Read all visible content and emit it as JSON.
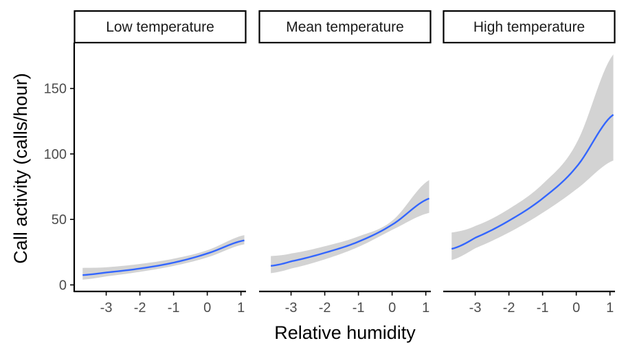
{
  "chart_data": {
    "type": "line",
    "xlabel": "Relative humidity",
    "ylabel": "Call activity (calls/hour)",
    "xlim": [
      -3.95,
      1.15
    ],
    "ylim": [
      -5,
      185
    ],
    "x_ticks": [
      -3,
      -2,
      -1,
      0,
      1
    ],
    "x_tick_labels": [
      "-3",
      "-2",
      "-1",
      "0",
      "1"
    ],
    "y_ticks": [
      0,
      50,
      100,
      150
    ],
    "y_tick_labels": [
      "0",
      "50",
      "100",
      "150"
    ],
    "grid": false,
    "legend": "none",
    "colors": {
      "line": "#3366FF",
      "ribbon": "#D3D3D3",
      "axis": "#000000",
      "strip_border": "#000000"
    },
    "panels": [
      {
        "strip": "Low temperature",
        "x": [
          -3.7,
          -3,
          -2,
          -1,
          0,
          1.1
        ],
        "y": [
          7.5,
          9.5,
          12.5,
          17,
          24,
          34
        ],
        "ymin": [
          4,
          6.5,
          10,
          14.5,
          21,
          31
        ],
        "ymax": [
          13,
          13.5,
          16,
          20,
          26.5,
          38
        ]
      },
      {
        "strip": "Mean temperature",
        "x": [
          -3.6,
          -3,
          -2,
          -1,
          0,
          1.1
        ],
        "y": [
          14.5,
          18,
          24.5,
          33,
          46,
          66
        ],
        "ymin": [
          9,
          12.5,
          19.5,
          29,
          42,
          55
        ],
        "ymax": [
          22,
          24,
          29.5,
          37,
          49,
          80
        ]
      },
      {
        "strip": "High temperature",
        "x": [
          -3.7,
          -3,
          -2,
          -1,
          0,
          1.1
        ],
        "y": [
          27.5,
          36,
          49,
          66,
          90,
          130
        ],
        "ymin": [
          19,
          28,
          40,
          55,
          73,
          95
        ],
        "ymax": [
          40,
          45,
          58,
          77,
          108,
          176
        ]
      }
    ]
  }
}
